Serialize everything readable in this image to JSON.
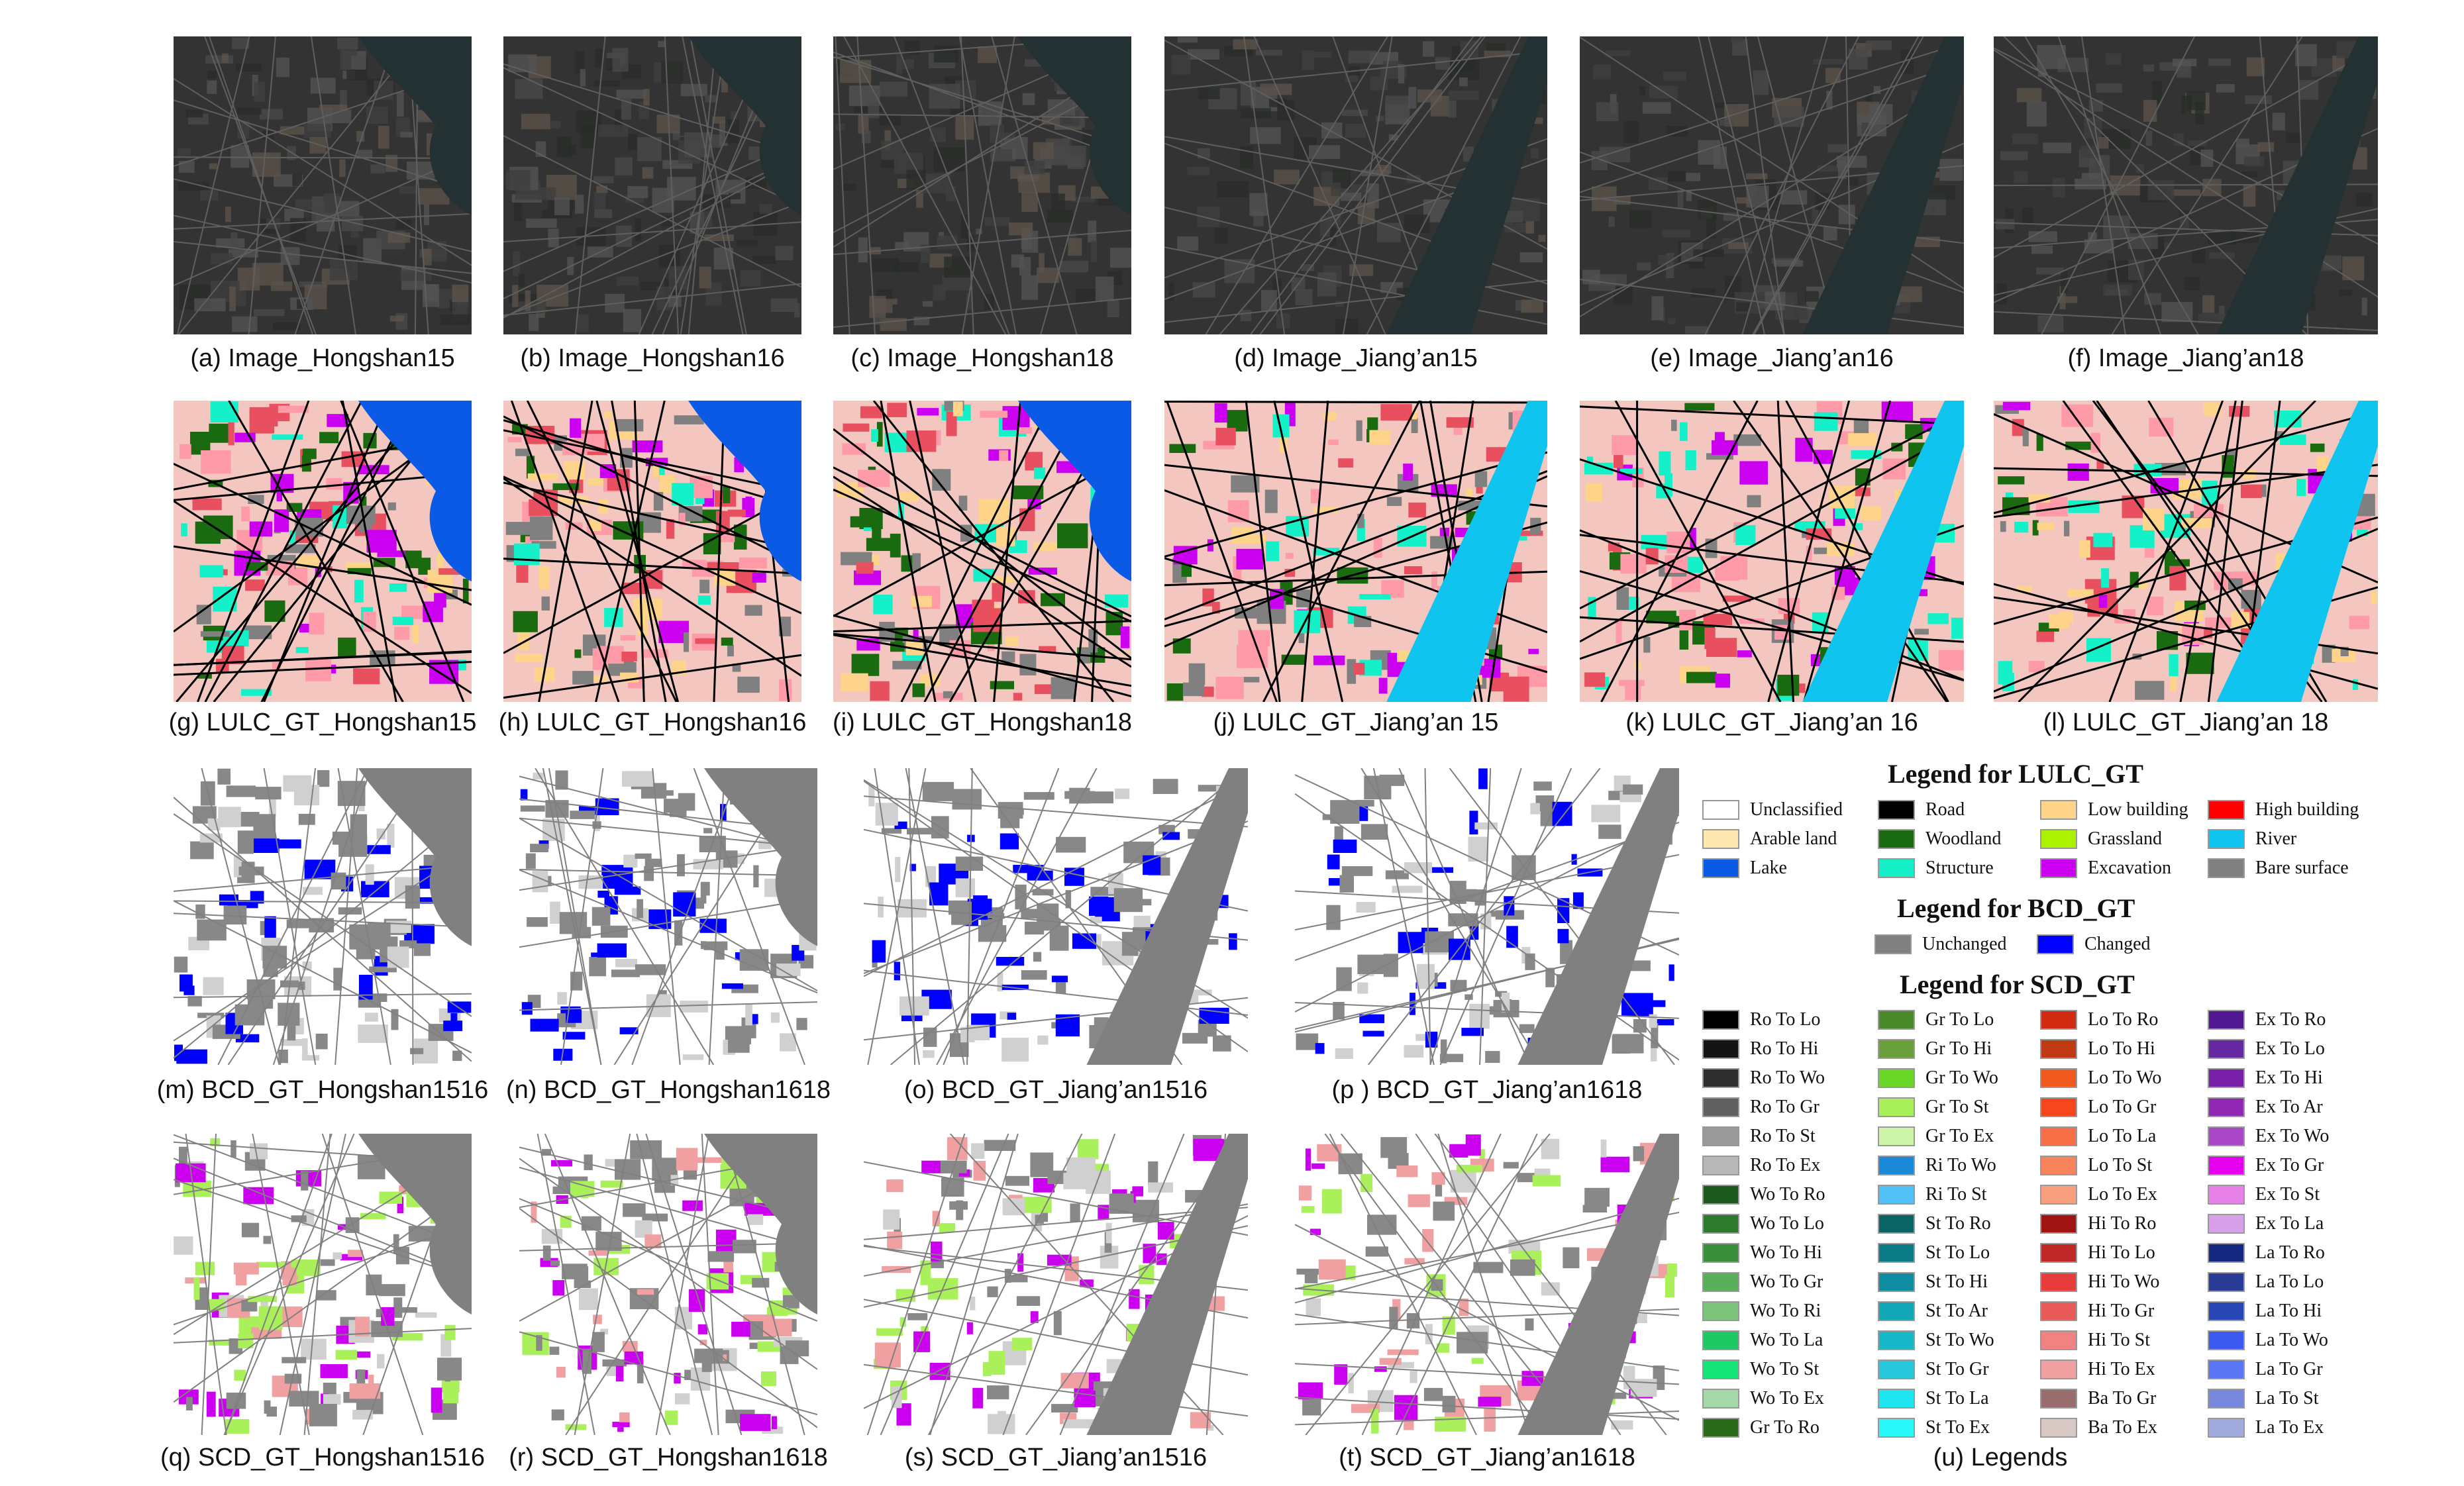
{
  "rows": [
    {
      "kind": "image",
      "panels": [
        {
          "caption": "(a) Image_Hongshan15",
          "variant": "hongshan"
        },
        {
          "caption": "(b) Image_Hongshan16",
          "variant": "hongshan"
        },
        {
          "caption": "(c) Image_Hongshan18",
          "variant": "hongshan"
        },
        {
          "caption": "(d) Image_Jiang’an15",
          "variant": "jiangan"
        },
        {
          "caption": "(e) Image_Jiang’an16",
          "variant": "jiangan"
        },
        {
          "caption": "(f) Image_Jiang’an18",
          "variant": "jiangan"
        }
      ]
    },
    {
      "kind": "lulc",
      "panels": [
        {
          "caption": "(g) LULC_GT_Hongshan15",
          "variant": "hongshan"
        },
        {
          "caption": "(h) LULC_GT_Hongshan16",
          "variant": "hongshan"
        },
        {
          "caption": "(i) LULC_GT_Hongshan18",
          "variant": "hongshan"
        },
        {
          "caption": "(j) LULC_GT_Jiang’an 15",
          "variant": "jiangan"
        },
        {
          "caption": "(k) LULC_GT_Jiang’an 16",
          "variant": "jiangan"
        },
        {
          "caption": "(l) LULC_GT_Jiang’an 18",
          "variant": "jiangan"
        }
      ]
    },
    {
      "kind": "bcd",
      "panels": [
        {
          "caption": "(m) BCD_GT_Hongshan1516",
          "variant": "hongshan"
        },
        {
          "caption": "(n) BCD_GT_Hongshan1618",
          "variant": "hongshan"
        },
        {
          "caption": "(o) BCD_GT_Jiang’an1516",
          "variant": "jiangan"
        },
        {
          "caption": "(p ) BCD_GT_Jiang’an1618",
          "variant": "jiangan"
        }
      ]
    },
    {
      "kind": "scd",
      "panels": [
        {
          "caption": "(q) SCD_GT_Hongshan1516",
          "variant": "hongshan"
        },
        {
          "caption": "(r) SCD_GT_Hongshan1618",
          "variant": "hongshan"
        },
        {
          "caption": "(s) SCD_GT_Jiang’an1516",
          "variant": "jiangan"
        },
        {
          "caption": "(t) SCD_GT_Jiang’an1618",
          "variant": "jiangan"
        }
      ]
    }
  ],
  "legends": {
    "lulc_title": "Legend for LULC_GT",
    "lulc_items": [
      {
        "label": "Unclassified",
        "color": "#ffffff"
      },
      {
        "label": "Road",
        "color": "#000000"
      },
      {
        "label": "Low building",
        "color": "#fdd48a"
      },
      {
        "label": "High building",
        "color": "#ff0000"
      },
      {
        "label": "Arable land",
        "color": "#fde8b0"
      },
      {
        "label": "Woodland",
        "color": "#1a6b10"
      },
      {
        "label": "Grassland",
        "color": "#aaf200"
      },
      {
        "label": "River",
        "color": "#0fc5ef"
      },
      {
        "label": "Lake",
        "color": "#0a5ae6"
      },
      {
        "label": "Structure",
        "color": "#14f0c8"
      },
      {
        "label": "Excavation",
        "color": "#cc00f0"
      },
      {
        "label": "Bare surface",
        "color": "#808080"
      }
    ],
    "bcd_title": "Legend for BCD_GT",
    "bcd_items": [
      {
        "label": "Unchanged",
        "color": "#808080"
      },
      {
        "label": "Changed",
        "color": "#0000ff"
      }
    ],
    "scd_title": "Legend for SCD_GT",
    "scd_items": [
      {
        "label": "Ro To Lo",
        "color": "#000000"
      },
      {
        "label": "Ro To Hi",
        "color": "#141414"
      },
      {
        "label": "Ro To Wo",
        "color": "#2e2e2e"
      },
      {
        "label": "Ro To Gr",
        "color": "#606060"
      },
      {
        "label": "Ro To St",
        "color": "#9a9a9a"
      },
      {
        "label": "Ro To Ex",
        "color": "#b8b8b8"
      },
      {
        "label": "Wo To Ro",
        "color": "#1e5a1e"
      },
      {
        "label": "Wo To Lo",
        "color": "#2d7a2d"
      },
      {
        "label": "Wo To Hi",
        "color": "#3a8f3a"
      },
      {
        "label": "Wo To Gr",
        "color": "#5aaf5a"
      },
      {
        "label": "Wo To Ri",
        "color": "#7cc47c"
      },
      {
        "label": "Wo To La",
        "color": "#1ec864"
      },
      {
        "label": "Wo To St",
        "color": "#14e67a"
      },
      {
        "label": "Wo To Ex",
        "color": "#a4d8a8"
      },
      {
        "label": "Gr To  Ro",
        "color": "#2a6a1a"
      },
      {
        "label": "Gr To Lo",
        "color": "#4a8a2a"
      },
      {
        "label": "Gr To Hi",
        "color": "#6aa03a"
      },
      {
        "label": "Gr To Wo",
        "color": "#6ad628"
      },
      {
        "label": "Gr To St",
        "color": "#aaf05a"
      },
      {
        "label": "Gr To Ex",
        "color": "#ccf5a8"
      },
      {
        "label": "Ri To Wo",
        "color": "#1a8ad8"
      },
      {
        "label": "Ri To St",
        "color": "#50c0f5"
      },
      {
        "label": "St To  Ro",
        "color": "#0a6464"
      },
      {
        "label": "St To Lo",
        "color": "#0a7a84"
      },
      {
        "label": "St To Hi",
        "color": "#0e8ea0"
      },
      {
        "label": "St To Ar",
        "color": "#12a8b8"
      },
      {
        "label": "St To Wo",
        "color": "#16b8c8"
      },
      {
        "label": "St To Gr",
        "color": "#28c8dc"
      },
      {
        "label": "St To La",
        "color": "#1ee6f0"
      },
      {
        "label": "St To Ex",
        "color": "#28f8f8"
      },
      {
        "label": "Lo To  Ro",
        "color": "#d02a10"
      },
      {
        "label": "Lo To Hi",
        "color": "#c03a14"
      },
      {
        "label": "Lo To Wo",
        "color": "#f05a1e"
      },
      {
        "label": "Lo To Gr",
        "color": "#f5461e"
      },
      {
        "label": "Lo To La",
        "color": "#f56e46"
      },
      {
        "label": "Lo To St",
        "color": "#f8825a"
      },
      {
        "label": "Lo To Ex",
        "color": "#f8a07e"
      },
      {
        "label": "Hi To  Ro",
        "color": "#a01414"
      },
      {
        "label": "Hi To Lo",
        "color": "#c02828"
      },
      {
        "label": "Hi To Wo",
        "color": "#e83c3c"
      },
      {
        "label": "Hi To Gr",
        "color": "#e85a5a"
      },
      {
        "label": "Hi To St",
        "color": "#f08282"
      },
      {
        "label": "Hi To Ex",
        "color": "#f0a0a0"
      },
      {
        "label": "Ba To Gr",
        "color": "#9a6e6e"
      },
      {
        "label": "Ba To Ex",
        "color": "#d8c8c4"
      },
      {
        "label": "Ex To  Ro",
        "color": "#501890"
      },
      {
        "label": "Ex To Lo",
        "color": "#6428a0"
      },
      {
        "label": "Ex To Hi",
        "color": "#7820a8"
      },
      {
        "label": "Ex To Ar",
        "color": "#9028b4"
      },
      {
        "label": "Ex To Wo",
        "color": "#aa46c8"
      },
      {
        "label": "Ex To Gr",
        "color": "#e600f0"
      },
      {
        "label": "Ex To St",
        "color": "#e882e8"
      },
      {
        "label": "Ex To La",
        "color": "#d8a0e8"
      },
      {
        "label": "La To  Ro",
        "color": "#142880"
      },
      {
        "label": "La To Lo",
        "color": "#283c98"
      },
      {
        "label": "La To Hi",
        "color": "#2846b4"
      },
      {
        "label": "La To Wo",
        "color": "#3c5af0"
      },
      {
        "label": "La To Gr",
        "color": "#5a78f5"
      },
      {
        "label": "La To St",
        "color": "#7888dc"
      },
      {
        "label": "La To Ex",
        "color": "#a0aadc"
      }
    ],
    "caption": "(u) Legends"
  }
}
